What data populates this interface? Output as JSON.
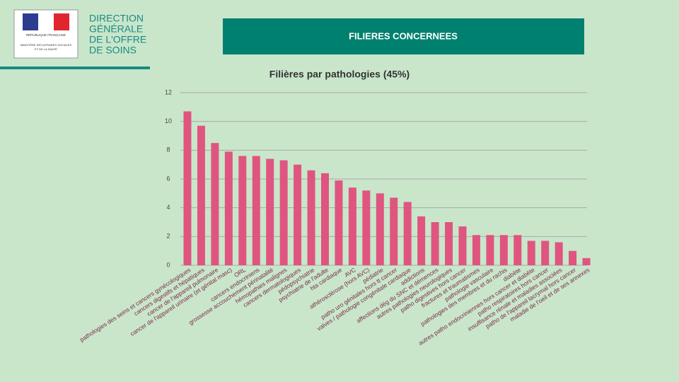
{
  "header": {
    "logo_lines": [
      "RÉPUBLIQUE FRANÇAISE",
      "MINISTÈRE DES AFFAIRES SOCIALES",
      "ET DE LA SANTÉ"
    ],
    "org_lines": [
      "DIRECTION",
      "GÉNÉRALE",
      "DE L'OFFRE",
      "DE SOINS"
    ],
    "banner": "FILIERES CONCERNEES"
  },
  "chart_data": {
    "type": "bar",
    "title": "Filières par pathologies (45%)",
    "color": "#e0557f",
    "grid": true,
    "categories": [
      "pathologies des seins et cancers gynécologiques",
      "cancers digestifs et hépatiques",
      "cancer de l'appareil pulmonaire",
      "cancer de l'appareil urinaire (et génital masc)",
      "ORL",
      "cancers endocriniens",
      "grossesse accouchement périnatalité",
      "hémopathies malignes",
      "cancers dermatologiques",
      "pédopsychiatrie",
      "psychiatrie de l'adulte",
      "hta cardiaque",
      "AVC",
      "athérosclérose (hors AVC)",
      "pédiatrie",
      "patho uro génitales hors tt cancer",
      "valves / pathologie congénitale cardiaque",
      "addictions",
      "affections dég du SNC et démences",
      "autres pathologies neurologiques",
      "patho digestives hors cancer",
      "fractures et traumatismes",
      "pathologie vasculaire",
      "pathologies des membres et du rachis",
      "diabète",
      "autres patho endocriniennes hors cancer et diabète",
      "patho respiratoires hors cancer",
      "insuffisance rénale et maladies associées",
      "patho de l'appareil lacrymal hors cancer",
      "maladie de l'oeil et de ses annexes"
    ],
    "values": [
      10.7,
      9.7,
      8.5,
      7.9,
      7.6,
      7.6,
      7.4,
      7.3,
      7.0,
      6.6,
      6.4,
      5.9,
      5.4,
      5.2,
      5.0,
      4.7,
      4.4,
      3.4,
      3.0,
      3.0,
      2.7,
      2.1,
      2.1,
      2.1,
      2.1,
      1.7,
      1.7,
      1.6,
      1.0,
      0.5
    ],
    "ylim": [
      0,
      12
    ],
    "yticks": [
      0,
      2,
      4,
      6,
      8,
      10,
      12
    ]
  }
}
